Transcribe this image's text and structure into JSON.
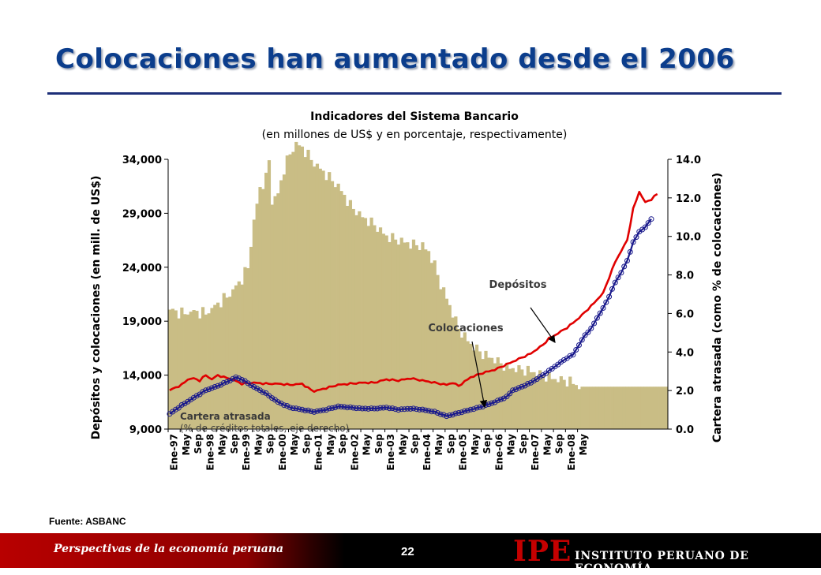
{
  "slide": {
    "title": "Colocaciones han aumentado desde el 2006",
    "source": "Fuente: ASBANC"
  },
  "footer": {
    "left_text": "Perspectivas de la economía peruana",
    "page_number": "22",
    "logo": "IPE",
    "institute": "INSTITUTO PERUANO DE ECONOMÍA"
  },
  "colors": {
    "title": "#0b3d8c",
    "bars": "#c9bd85",
    "depositos_line": "#e00000",
    "colocaciones_line": "#1a1a8c",
    "footer_red": "#b80000"
  },
  "chart_data": {
    "type": "bar+line",
    "title": "Indicadores del Sistema Bancario",
    "subtitle": "(en millones de US$ y en porcentaje, respectivamente)",
    "ylabel_left": "Depósitos y colocaciones (en mill. de US$)",
    "ylabel_right": "Cartera atrasada (como % de colocaciones)",
    "ylim_left": [
      9000,
      34000
    ],
    "ylim_right": [
      0,
      14
    ],
    "yticks_left": [
      "9,000",
      "14,000",
      "19,000",
      "24,000",
      "29,000",
      "34,000"
    ],
    "yticks_right": [
      "0.0",
      "2.0",
      "4.0",
      "6.0",
      "8.0",
      "10.0",
      "12.0",
      "14.0"
    ],
    "x_labels": [
      "Ene-97",
      "May",
      "Sep",
      "Ene-98",
      "May",
      "Sep",
      "Ene-99",
      "May",
      "Sep",
      "Ene-00",
      "May",
      "Sep",
      "Ene-01",
      "May",
      "Sep",
      "Ene-02",
      "May",
      "Sep",
      "Ene-03",
      "May",
      "Sep",
      "Ene-04",
      "May",
      "Sep",
      "Ene-05",
      "May",
      "Sep",
      "Ene-06",
      "May",
      "Sep",
      "Ene-07",
      "May",
      "Sep",
      "Ene-08",
      "May"
    ],
    "annotations": {
      "depositos": "Depósitos",
      "colocaciones": "Colocaciones",
      "cartera_line1": "Cartera atrasada",
      "cartera_line2": "(% de créditos totales, eje derecho)"
    },
    "series": [
      {
        "name": "Cartera atrasada",
        "axis": "right",
        "type": "bar",
        "anchors": [
          [
            0,
            6.2
          ],
          [
            4,
            6.0
          ],
          [
            8,
            6.1
          ],
          [
            12,
            6.0
          ],
          [
            16,
            6.5
          ],
          [
            20,
            7.0
          ],
          [
            24,
            7.8
          ],
          [
            26,
            8.4
          ],
          [
            28,
            10.8
          ],
          [
            30,
            12.5
          ],
          [
            32,
            13.0
          ],
          [
            33,
            14.0
          ],
          [
            34,
            11.8
          ],
          [
            36,
            12.2
          ],
          [
            38,
            13.5
          ],
          [
            40,
            14.3
          ],
          [
            42,
            14.8
          ],
          [
            44,
            14.6
          ],
          [
            48,
            13.8
          ],
          [
            52,
            13.2
          ],
          [
            56,
            12.6
          ],
          [
            60,
            11.6
          ],
          [
            64,
            11.0
          ],
          [
            68,
            10.6
          ],
          [
            72,
            10.0
          ],
          [
            76,
            9.8
          ],
          [
            80,
            9.6
          ],
          [
            84,
            9.5
          ],
          [
            86,
            9.2
          ],
          [
            88,
            8.5
          ],
          [
            90,
            7.5
          ],
          [
            92,
            6.8
          ],
          [
            96,
            5.2
          ],
          [
            100,
            4.4
          ],
          [
            104,
            3.9
          ],
          [
            108,
            3.6
          ],
          [
            112,
            3.2
          ],
          [
            116,
            3.1
          ],
          [
            120,
            3.0
          ],
          [
            124,
            2.8
          ],
          [
            128,
            2.6
          ],
          [
            132,
            2.5
          ],
          [
            134,
            2.4
          ],
          [
            136,
            2.2
          ]
        ]
      },
      {
        "name": "Depósitos",
        "axis": "left",
        "type": "line",
        "anchors": [
          [
            0,
            12600
          ],
          [
            4,
            13100
          ],
          [
            6,
            13600
          ],
          [
            8,
            13700
          ],
          [
            10,
            13500
          ],
          [
            12,
            14000
          ],
          [
            14,
            13600
          ],
          [
            16,
            14000
          ],
          [
            18,
            13800
          ],
          [
            20,
            13700
          ],
          [
            24,
            13200
          ],
          [
            28,
            13300
          ],
          [
            32,
            13200
          ],
          [
            36,
            13200
          ],
          [
            40,
            13100
          ],
          [
            44,
            13200
          ],
          [
            46,
            12800
          ],
          [
            48,
            12500
          ],
          [
            52,
            12800
          ],
          [
            56,
            13100
          ],
          [
            60,
            13200
          ],
          [
            64,
            13300
          ],
          [
            68,
            13300
          ],
          [
            72,
            13600
          ],
          [
            76,
            13500
          ],
          [
            80,
            13700
          ],
          [
            84,
            13500
          ],
          [
            88,
            13300
          ],
          [
            92,
            13100
          ],
          [
            94,
            13300
          ],
          [
            96,
            13000
          ],
          [
            100,
            13800
          ],
          [
            104,
            14200
          ],
          [
            108,
            14500
          ],
          [
            112,
            15000
          ],
          [
            116,
            15500
          ],
          [
            120,
            16000
          ],
          [
            122,
            16400
          ],
          [
            124,
            16800
          ],
          [
            126,
            17400
          ],
          [
            128,
            17700
          ],
          [
            132,
            18400
          ],
          [
            136,
            19300
          ],
          [
            140,
            20400
          ],
          [
            144,
            21600
          ],
          [
            148,
            24500
          ],
          [
            152,
            26500
          ],
          [
            154,
            29400
          ],
          [
            156,
            31000
          ],
          [
            158,
            30000
          ],
          [
            160,
            30300
          ],
          [
            162,
            30800
          ]
        ]
      },
      {
        "name": "Colocaciones",
        "axis": "left",
        "type": "line",
        "anchors": [
          [
            0,
            10400
          ],
          [
            4,
            11200
          ],
          [
            8,
            11900
          ],
          [
            12,
            12600
          ],
          [
            16,
            13000
          ],
          [
            20,
            13500
          ],
          [
            22,
            13800
          ],
          [
            24,
            13600
          ],
          [
            28,
            12900
          ],
          [
            32,
            12300
          ],
          [
            36,
            11500
          ],
          [
            40,
            11000
          ],
          [
            44,
            10800
          ],
          [
            48,
            10600
          ],
          [
            52,
            10800
          ],
          [
            56,
            11100
          ],
          [
            60,
            11000
          ],
          [
            64,
            10900
          ],
          [
            68,
            10900
          ],
          [
            72,
            11000
          ],
          [
            76,
            10800
          ],
          [
            80,
            10900
          ],
          [
            84,
            10800
          ],
          [
            88,
            10600
          ],
          [
            92,
            10200
          ],
          [
            96,
            10500
          ],
          [
            100,
            10800
          ],
          [
            104,
            11100
          ],
          [
            108,
            11500
          ],
          [
            112,
            12000
          ],
          [
            114,
            12600
          ],
          [
            116,
            12800
          ],
          [
            120,
            13300
          ],
          [
            124,
            14000
          ],
          [
            128,
            14800
          ],
          [
            132,
            15600
          ],
          [
            134,
            15900
          ],
          [
            136,
            16800
          ],
          [
            138,
            17700
          ],
          [
            140,
            18300
          ],
          [
            142,
            19300
          ],
          [
            144,
            20200
          ],
          [
            146,
            21300
          ],
          [
            148,
            22600
          ],
          [
            150,
            23500
          ],
          [
            152,
            24600
          ],
          [
            154,
            26300
          ],
          [
            156,
            27300
          ],
          [
            158,
            27700
          ],
          [
            160,
            28500
          ]
        ]
      }
    ]
  }
}
